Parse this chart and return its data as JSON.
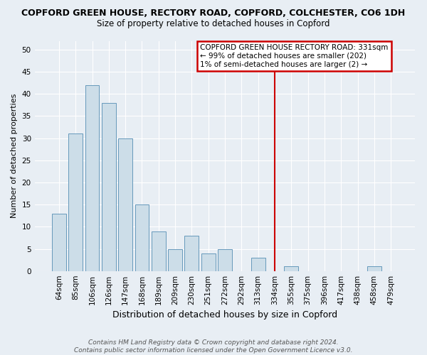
{
  "title": "COPFORD GREEN HOUSE, RECTORY ROAD, COPFORD, COLCHESTER, CO6 1DH",
  "subtitle": "Size of property relative to detached houses in Copford",
  "xlabel": "Distribution of detached houses by size in Copford",
  "ylabel": "Number of detached properties",
  "categories": [
    "64sqm",
    "85sqm",
    "106sqm",
    "126sqm",
    "147sqm",
    "168sqm",
    "189sqm",
    "209sqm",
    "230sqm",
    "251sqm",
    "272sqm",
    "292sqm",
    "313sqm",
    "334sqm",
    "355sqm",
    "375sqm",
    "396sqm",
    "417sqm",
    "438sqm",
    "458sqm",
    "479sqm"
  ],
  "values": [
    13,
    31,
    42,
    38,
    30,
    15,
    9,
    5,
    8,
    4,
    5,
    0,
    3,
    0,
    1,
    0,
    0,
    0,
    0,
    1,
    0
  ],
  "bar_color": "#ccdde8",
  "bar_edge_color": "#6699bb",
  "vline_x_index": 13,
  "vline_color": "#cc0000",
  "annotation_title": "COPFORD GREEN HOUSE RECTORY ROAD: 331sqm",
  "annotation_line1": "← 99% of detached houses are smaller (202)",
  "annotation_line2": "1% of semi-detached houses are larger (2) →",
  "annotation_box_color": "#ffffff",
  "annotation_box_edge": "#cc0000",
  "ylim": [
    0,
    52
  ],
  "yticks": [
    0,
    5,
    10,
    15,
    20,
    25,
    30,
    35,
    40,
    45,
    50
  ],
  "footer_line1": "Contains HM Land Registry data © Crown copyright and database right 2024.",
  "footer_line2": "Contains public sector information licensed under the Open Government Licence v3.0.",
  "bg_color": "#e8eef4",
  "plot_bg_color": "#e8eef4",
  "grid_color": "#ffffff",
  "title_fontsize": 9,
  "subtitle_fontsize": 8.5,
  "ylabel_fontsize": 8,
  "xlabel_fontsize": 9,
  "tick_fontsize": 7.5,
  "ann_fontsize": 7.5,
  "footer_fontsize": 6.5
}
